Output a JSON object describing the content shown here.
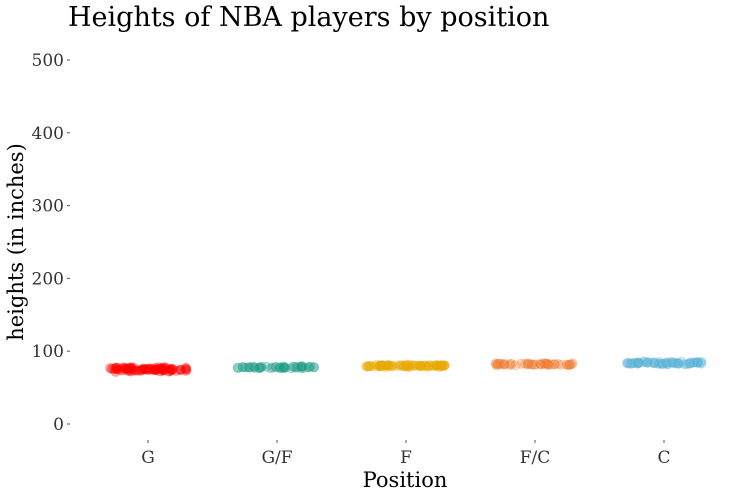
{
  "chart_data": {
    "type": "scatter",
    "title": "Heights of NBA players by position",
    "xlabel": "Position",
    "ylabel": "heights (in inches)",
    "ylim": [
      0,
      500
    ],
    "yticks": [
      0,
      100,
      200,
      300,
      400,
      500
    ],
    "categories": [
      "G",
      "G/F",
      "F",
      "F/C",
      "C"
    ],
    "grid": false,
    "legend": "none",
    "series": [
      {
        "category": "G",
        "color": "#ff0000",
        "center": 75,
        "spread": 3,
        "n": 90
      },
      {
        "category": "G/F",
        "color": "#1a9a80",
        "center": 78,
        "spread": 1.6,
        "n": 45
      },
      {
        "category": "F",
        "color": "#e8a800",
        "center": 80,
        "spread": 1.6,
        "n": 80
      },
      {
        "category": "F/C",
        "color": "#ef7a2e",
        "center": 82,
        "spread": 1.6,
        "n": 45
      },
      {
        "category": "C",
        "color": "#5bb3d6",
        "center": 84,
        "spread": 1.8,
        "n": 60
      }
    ]
  }
}
